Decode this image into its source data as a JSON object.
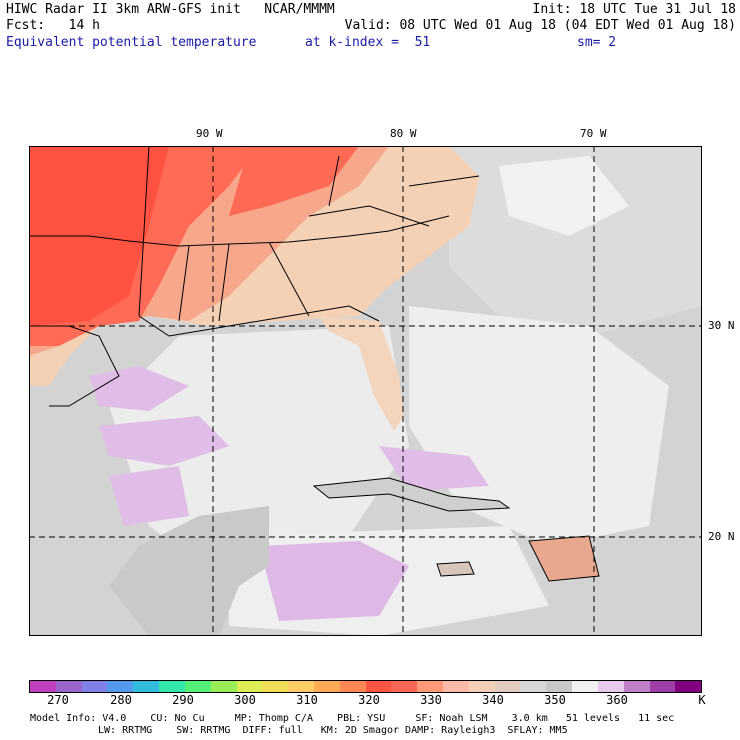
{
  "header": {
    "left_line1": "HIWC Radar II 3km ARW-GFS init   NCAR/MMMM",
    "left_line2": "Fcst:   14 h",
    "left_line3": "Equivalent potential temperature",
    "right_line1": "Init: 18 UTC Tue 31 Jul 18",
    "right_line2": "Valid: 08 UTC Wed 01 Aug 18 (04 EDT Wed 01 Aug 18)",
    "mid_line3": "at k-index =  51",
    "right_line3": "sm= 2"
  },
  "map": {
    "lon_labels": [
      "90 W",
      "80 W",
      "70 W"
    ],
    "lat_labels": [
      "30 N",
      "20 N"
    ]
  },
  "colorbar": {
    "colors": [
      "#c040c0",
      "#9966cc",
      "#8080e6",
      "#5599ee",
      "#33bbdd",
      "#33e6aa",
      "#55ee77",
      "#99ee55",
      "#ddee55",
      "#eedd55",
      "#ffcc66",
      "#ffaa55",
      "#ff8855",
      "#ff5544",
      "#ff6655",
      "#ff9977",
      "#ffbbaa",
      "#f2d0b8",
      "#e0ccc0",
      "#d6d6d6",
      "#c8c8c8",
      "#f0f0f0",
      "#e8c8ec",
      "#c080c8",
      "#9e3ea6",
      "#800080"
    ],
    "labels": [
      "270",
      "280",
      "290",
      "300",
      "310",
      "320",
      "330",
      "340",
      "350",
      "360"
    ],
    "unit": "K"
  },
  "footer": {
    "line1_left": "Model Info: V4.0    CU: No Cu     MP: Thomp C/A    PBL: YSU     SF: Noah LSM    3.0 km   51 levels   11 sec",
    "line2_left": "LW: RRTMG    SW: RRTMG  DIFF: full   KM: 2D Smagor DAMP: Rayleigh3  SFLAY: MM5"
  }
}
